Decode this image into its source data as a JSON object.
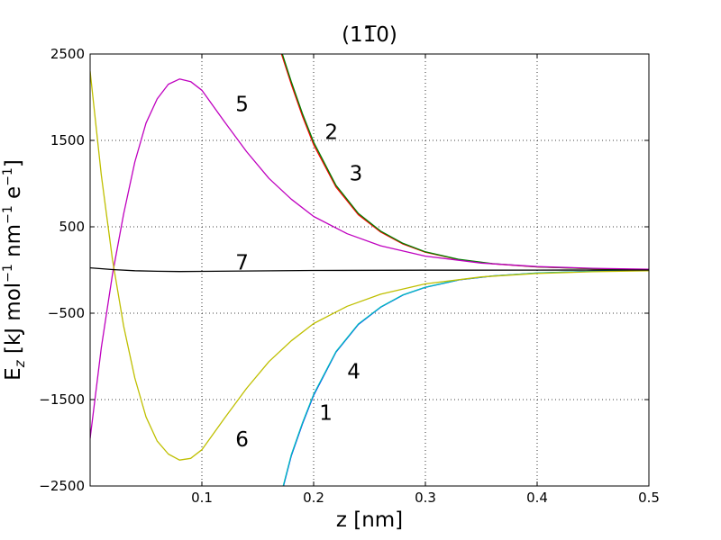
{
  "chart_data": {
    "type": "line",
    "title": "(11̅0)",
    "xlabel": "z [nm]",
    "ylabel": "E_z [kJ mol^-1 nm^-1 e^-1]",
    "ylabel_parts": {
      "E": "E",
      "sub": "z",
      "unit_a": " [kJ mol",
      "sup1": "−1",
      "unit_b": " nm",
      "sup2": "−1",
      "unit_c": " e",
      "sup3": "−1",
      "close": "]"
    },
    "xlim": [
      0.0,
      0.5
    ],
    "ylim": [
      -2500,
      2500
    ],
    "xticks": [
      0.1,
      0.2,
      0.3,
      0.4,
      0.5
    ],
    "xtick_labels": [
      "0.1",
      "0.2",
      "0.3",
      "0.4",
      "0.5"
    ],
    "yticks": [
      2500,
      1500,
      500,
      -500,
      -1500,
      -2500
    ],
    "ytick_labels": [
      "2500",
      "1500",
      "500",
      "−500",
      "−1500",
      "−2500"
    ],
    "grid": true,
    "series": [
      {
        "name": "1",
        "color": "#0000ff",
        "x": [
          0.17,
          0.18,
          0.19,
          0.2,
          0.22,
          0.24,
          0.26,
          0.28,
          0.3,
          0.33,
          0.36,
          0.4,
          0.45,
          0.5
        ],
        "y": [
          -2650,
          -2150,
          -1780,
          -1450,
          -950,
          -630,
          -430,
          -290,
          -200,
          -115,
          -70,
          -35,
          -15,
          -5
        ]
      },
      {
        "name": "4",
        "color": "#00bfbf",
        "x": [
          0.17,
          0.18,
          0.19,
          0.2,
          0.22,
          0.24,
          0.26,
          0.28,
          0.3,
          0.33,
          0.36,
          0.4,
          0.45,
          0.5
        ],
        "y": [
          -2640,
          -2140,
          -1770,
          -1440,
          -945,
          -625,
          -428,
          -288,
          -199,
          -114,
          -69,
          -34,
          -15,
          -5
        ]
      },
      {
        "name": "2",
        "color": "#ff0000",
        "x": [
          0.17,
          0.18,
          0.19,
          0.2,
          0.22,
          0.24,
          0.26,
          0.28,
          0.3,
          0.33,
          0.36,
          0.4,
          0.45,
          0.5
        ],
        "y": [
          2550,
          2150,
          1780,
          1450,
          960,
          640,
          440,
          300,
          205,
          120,
          72,
          35,
          15,
          5
        ]
      },
      {
        "name": "3",
        "color": "#008000",
        "x": [
          0.17,
          0.18,
          0.19,
          0.2,
          0.22,
          0.24,
          0.26,
          0.28,
          0.3,
          0.33,
          0.36,
          0.4,
          0.45,
          0.5
        ],
        "y": [
          2580,
          2180,
          1810,
          1480,
          980,
          655,
          450,
          308,
          210,
          123,
          74,
          36,
          16,
          5
        ]
      },
      {
        "name": "5",
        "color": "#bf00bf",
        "x": [
          0.0,
          0.01,
          0.02,
          0.03,
          0.04,
          0.05,
          0.06,
          0.07,
          0.08,
          0.09,
          0.1,
          0.12,
          0.14,
          0.16,
          0.18,
          0.2,
          0.23,
          0.26,
          0.3,
          0.35,
          0.4,
          0.45,
          0.5
        ],
        "y": [
          -1950,
          -900,
          -50,
          650,
          1250,
          1700,
          1980,
          2150,
          2210,
          2180,
          2080,
          1720,
          1370,
          1060,
          820,
          620,
          420,
          280,
          160,
          80,
          40,
          20,
          8
        ]
      },
      {
        "name": "6",
        "color": "#bfbf00",
        "x": [
          0.0,
          0.01,
          0.02,
          0.03,
          0.04,
          0.05,
          0.06,
          0.07,
          0.08,
          0.09,
          0.1,
          0.12,
          0.14,
          0.16,
          0.18,
          0.2,
          0.23,
          0.26,
          0.3,
          0.35,
          0.4,
          0.45,
          0.5
        ],
        "y": [
          2300,
          1100,
          120,
          -650,
          -1250,
          -1700,
          -1980,
          -2130,
          -2200,
          -2180,
          -2080,
          -1720,
          -1370,
          -1060,
          -820,
          -620,
          -420,
          -280,
          -160,
          -80,
          -40,
          -20,
          -8
        ]
      },
      {
        "name": "7",
        "color": "#000000",
        "x": [
          0.0,
          0.02,
          0.04,
          0.06,
          0.08,
          0.1,
          0.15,
          0.2,
          0.3,
          0.4,
          0.5
        ],
        "y": [
          25,
          5,
          -8,
          -15,
          -18,
          -16,
          -10,
          -5,
          -2,
          -1,
          0
        ]
      }
    ],
    "labels": [
      {
        "text": "1",
        "x": 0.205,
        "y": -1650
      },
      {
        "text": "4",
        "x": 0.23,
        "y": -1170
      },
      {
        "text": "2",
        "x": 0.21,
        "y": 1600
      },
      {
        "text": "3",
        "x": 0.232,
        "y": 1120
      },
      {
        "text": "5",
        "x": 0.13,
        "y": 1920
      },
      {
        "text": "6",
        "x": 0.13,
        "y": -1960
      },
      {
        "text": "7",
        "x": 0.13,
        "y": 90
      }
    ]
  }
}
